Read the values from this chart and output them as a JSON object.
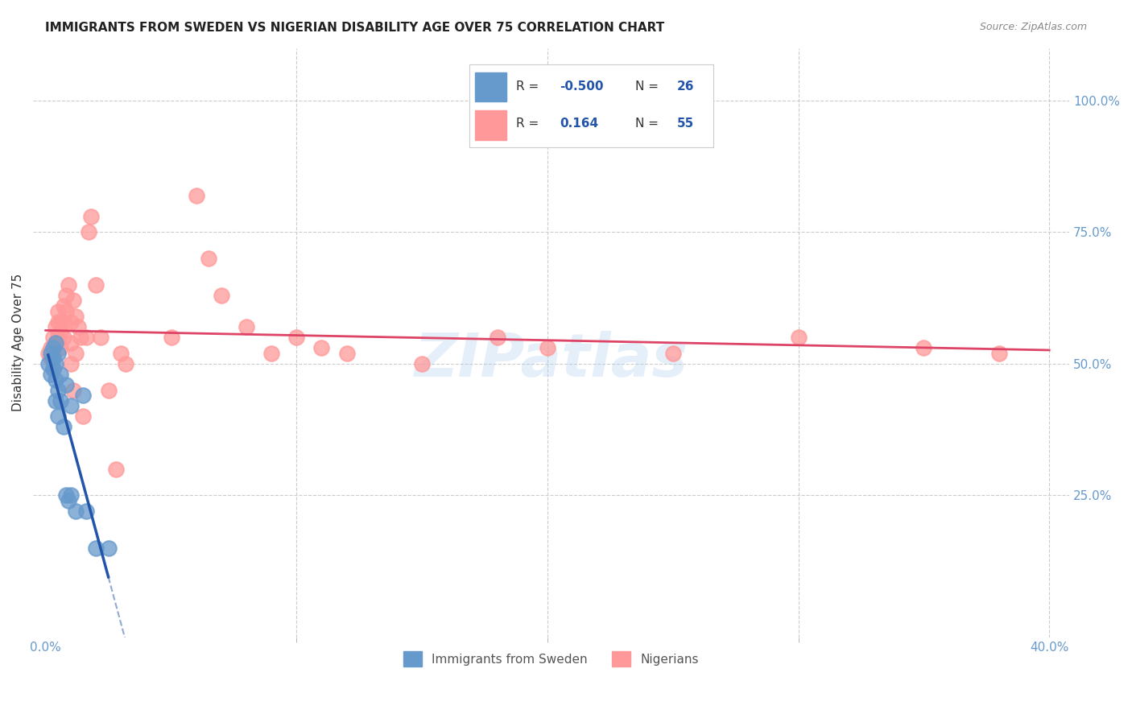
{
  "title": "IMMIGRANTS FROM SWEDEN VS NIGERIAN DISABILITY AGE OVER 75 CORRELATION CHART",
  "source": "Source: ZipAtlas.com",
  "ylabel": "Disability Age Over 75",
  "right_yticks": [
    "100.0%",
    "75.0%",
    "50.0%",
    "25.0%"
  ],
  "right_ytick_vals": [
    1.0,
    0.75,
    0.5,
    0.25
  ],
  "legend_blue_R": "-0.500",
  "legend_blue_N": "26",
  "legend_pink_R": "0.164",
  "legend_pink_N": "55",
  "blue_color": "#6699CC",
  "pink_color": "#FF9999",
  "blue_line_color": "#2255AA",
  "pink_line_color": "#DD4466",
  "watermark": "ZIPatlas",
  "blue_points_x": [
    0.001,
    0.002,
    0.002,
    0.003,
    0.003,
    0.003,
    0.004,
    0.004,
    0.004,
    0.004,
    0.005,
    0.005,
    0.005,
    0.006,
    0.006,
    0.007,
    0.008,
    0.008,
    0.009,
    0.01,
    0.01,
    0.012,
    0.015,
    0.016,
    0.02,
    0.025
  ],
  "blue_points_y": [
    0.5,
    0.52,
    0.48,
    0.53,
    0.51,
    0.49,
    0.54,
    0.5,
    0.47,
    0.43,
    0.52,
    0.45,
    0.4,
    0.48,
    0.43,
    0.38,
    0.46,
    0.25,
    0.24,
    0.42,
    0.25,
    0.22,
    0.44,
    0.22,
    0.15,
    0.15
  ],
  "pink_points_x": [
    0.001,
    0.002,
    0.002,
    0.003,
    0.003,
    0.003,
    0.004,
    0.004,
    0.005,
    0.005,
    0.005,
    0.006,
    0.006,
    0.006,
    0.007,
    0.007,
    0.007,
    0.008,
    0.008,
    0.009,
    0.01,
    0.01,
    0.01,
    0.011,
    0.011,
    0.012,
    0.012,
    0.013,
    0.014,
    0.015,
    0.016,
    0.017,
    0.018,
    0.02,
    0.022,
    0.025,
    0.028,
    0.03,
    0.032,
    0.05,
    0.06,
    0.065,
    0.07,
    0.08,
    0.09,
    0.1,
    0.11,
    0.12,
    0.15,
    0.18,
    0.2,
    0.25,
    0.3,
    0.35,
    0.38
  ],
  "pink_points_y": [
    0.52,
    0.53,
    0.51,
    0.55,
    0.52,
    0.49,
    0.57,
    0.54,
    0.58,
    0.55,
    0.6,
    0.58,
    0.56,
    0.53,
    0.61,
    0.58,
    0.55,
    0.63,
    0.6,
    0.65,
    0.58,
    0.54,
    0.5,
    0.62,
    0.45,
    0.59,
    0.52,
    0.57,
    0.55,
    0.4,
    0.55,
    0.75,
    0.78,
    0.65,
    0.55,
    0.45,
    0.3,
    0.52,
    0.5,
    0.55,
    0.82,
    0.7,
    0.63,
    0.57,
    0.52,
    0.55,
    0.53,
    0.52,
    0.5,
    0.55,
    0.53,
    0.52,
    0.55,
    0.53,
    0.52
  ],
  "grid_color": "#CCCCCC",
  "background_color": "#FFFFFF"
}
